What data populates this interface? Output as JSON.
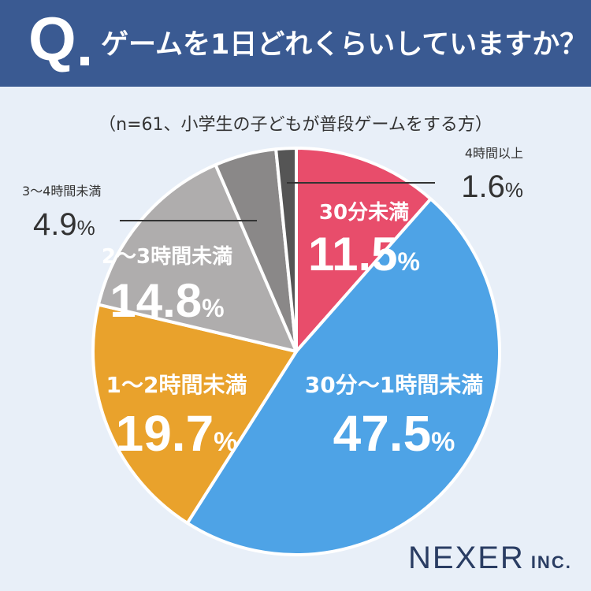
{
  "header": {
    "q_mark": "Q",
    "title": "ゲームを1日どれくらいしていますか？"
  },
  "subtitle": "（n=61、小学生の子どもが普段ゲームをする方）",
  "brand": {
    "name": "NEXER",
    "suffix": "INC."
  },
  "chart_data": {
    "type": "pie",
    "title": "ゲームを1日どれくらいしていますか？",
    "subtitle": "（n=61、小学生の子どもが普段ゲームをする方）",
    "unit": "%",
    "start": "12 o'clock",
    "direction": "clockwise",
    "slices": [
      {
        "label": "30分未満",
        "value": 11.5,
        "display": "11.5",
        "color": "#e84d6b"
      },
      {
        "label": "30分〜1時間未満",
        "value": 47.5,
        "display": "47.5",
        "color": "#4ea3e6"
      },
      {
        "label": "1〜2時間未満",
        "value": 19.7,
        "display": "19.7",
        "color": "#e9a22c"
      },
      {
        "label": "2〜3時間未満",
        "value": 14.8,
        "display": "14.8",
        "color": "#afadad"
      },
      {
        "label": "3〜4時間未満",
        "value": 4.9,
        "display": "4.9",
        "color": "#8a8888"
      },
      {
        "label": "4時間以上",
        "value": 1.6,
        "display": "1.6",
        "color": "#555555"
      }
    ]
  }
}
